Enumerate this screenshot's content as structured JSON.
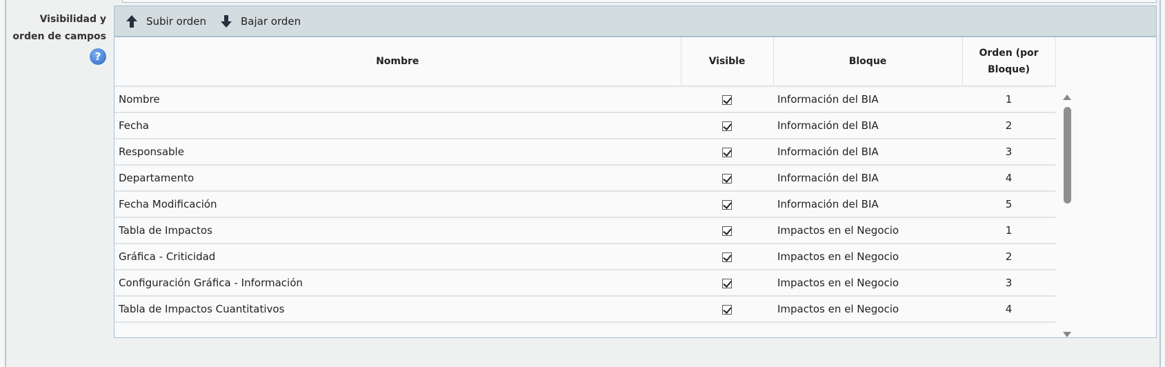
{
  "field_label": "Visibilidad y orden de campos",
  "field_label_lines": [
    "Visibilidad y",
    "orden de campos"
  ],
  "help_icon": "?",
  "toolbar": {
    "move_up": "Subir orden",
    "move_down": "Bajar orden"
  },
  "columns": [
    "Nombre",
    "Visible",
    "Bloque",
    "Orden (por Bloque)"
  ],
  "rows": [
    {
      "name": "Nombre",
      "visible": true,
      "block": "Información del BIA",
      "order": "1"
    },
    {
      "name": "Fecha",
      "visible": true,
      "block": "Información del BIA",
      "order": "2"
    },
    {
      "name": "Responsable",
      "visible": true,
      "block": "Información del BIA",
      "order": "3"
    },
    {
      "name": "Departamento",
      "visible": true,
      "block": "Información del BIA",
      "order": "4"
    },
    {
      "name": "Fecha Modificación",
      "visible": true,
      "block": "Información del BIA",
      "order": "5"
    },
    {
      "name": "Tabla de Impactos",
      "visible": true,
      "block": "Impactos en el Negocio",
      "order": "1"
    },
    {
      "name": "Gráfica - Criticidad",
      "visible": true,
      "block": "Impactos en el Negocio",
      "order": "2"
    },
    {
      "name": "Configuración Gráfica - Información",
      "visible": true,
      "block": "Impactos en el Negocio",
      "order": "3"
    },
    {
      "name": "Tabla de Impactos Cuantitativos",
      "visible": true,
      "block": "Impactos en el Negocio",
      "order": "4"
    }
  ]
}
